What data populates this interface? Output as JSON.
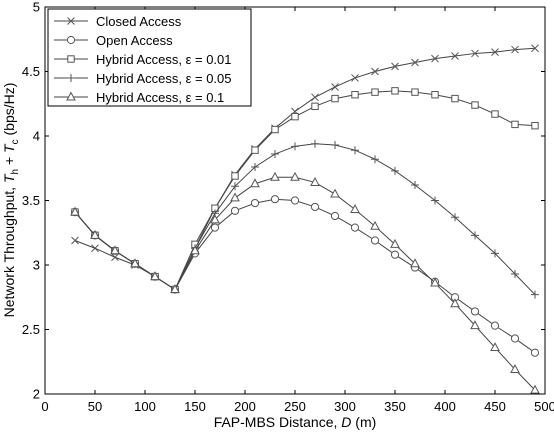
{
  "chart_data": {
    "type": "line",
    "title": "",
    "xlabel": "FAP-MBS Distance, D (m)",
    "ylabel": "Network Throughput, T_h + T_c (bps/Hz)",
    "xlabel_parts": [
      "FAP-MBS Distance, ",
      "D",
      " (m)"
    ],
    "ylabel_parts": [
      "Network Throughput, ",
      "T",
      "h",
      " + ",
      "T",
      "c",
      " (bps/Hz)"
    ],
    "xlim": [
      0,
      500
    ],
    "ylim": [
      2,
      5
    ],
    "xticks": [
      0,
      50,
      100,
      150,
      200,
      250,
      300,
      350,
      400,
      450,
      500
    ],
    "yticks": [
      2,
      2.5,
      3,
      3.5,
      4,
      4.5,
      5
    ],
    "xtick_labels": [
      "0",
      "50",
      "100",
      "150",
      "200",
      "250",
      "300",
      "350",
      "400",
      "450",
      "500"
    ],
    "ytick_labels": [
      "2",
      "2.5",
      "3",
      "3.5",
      "4",
      "4.5",
      "5"
    ],
    "grid": false,
    "legend_position": "top-left",
    "x": [
      30,
      50,
      70,
      90,
      110,
      130,
      150,
      170,
      190,
      210,
      230,
      250,
      270,
      290,
      310,
      330,
      350,
      370,
      390,
      410,
      430,
      450,
      470,
      490
    ],
    "series": [
      {
        "name": "Closed Access",
        "marker": "x",
        "values": [
          3.19,
          3.13,
          3.06,
          3.0,
          2.91,
          2.81,
          3.13,
          3.44,
          3.7,
          3.9,
          4.06,
          4.19,
          4.3,
          4.38,
          4.45,
          4.5,
          4.54,
          4.57,
          4.6,
          4.62,
          4.64,
          4.65,
          4.67,
          4.68
        ]
      },
      {
        "name": "Open Access",
        "marker": "o",
        "values": [
          3.41,
          3.23,
          3.11,
          3.01,
          2.91,
          2.81,
          3.09,
          3.29,
          3.42,
          3.48,
          3.51,
          3.5,
          3.45,
          3.38,
          3.29,
          3.19,
          3.08,
          2.98,
          2.87,
          2.75,
          2.64,
          2.53,
          2.43,
          2.32
        ]
      },
      {
        "name": "Hybrid Access, ε = 0.01",
        "marker": "square",
        "values": [
          3.41,
          3.23,
          3.11,
          3.01,
          2.91,
          2.81,
          3.16,
          3.44,
          3.69,
          3.89,
          4.05,
          4.15,
          4.23,
          4.29,
          4.32,
          4.34,
          4.35,
          4.34,
          4.32,
          4.29,
          4.24,
          4.17,
          4.09,
          4.08
        ]
      },
      {
        "name": "Hybrid Access, ε = 0.05",
        "marker": "+",
        "values": [
          3.41,
          3.23,
          3.11,
          3.01,
          2.91,
          2.81,
          3.13,
          3.4,
          3.61,
          3.76,
          3.86,
          3.92,
          3.94,
          3.93,
          3.89,
          3.82,
          3.73,
          3.62,
          3.5,
          3.37,
          3.23,
          3.09,
          2.93,
          2.77
        ]
      },
      {
        "name": "Hybrid Access, ε = 0.1",
        "marker": "triangle",
        "values": [
          3.41,
          3.23,
          3.11,
          3.01,
          2.91,
          2.81,
          3.11,
          3.35,
          3.52,
          3.63,
          3.68,
          3.68,
          3.64,
          3.55,
          3.43,
          3.3,
          3.16,
          3.01,
          2.86,
          2.7,
          2.53,
          2.36,
          2.19,
          2.03
        ]
      }
    ]
  }
}
